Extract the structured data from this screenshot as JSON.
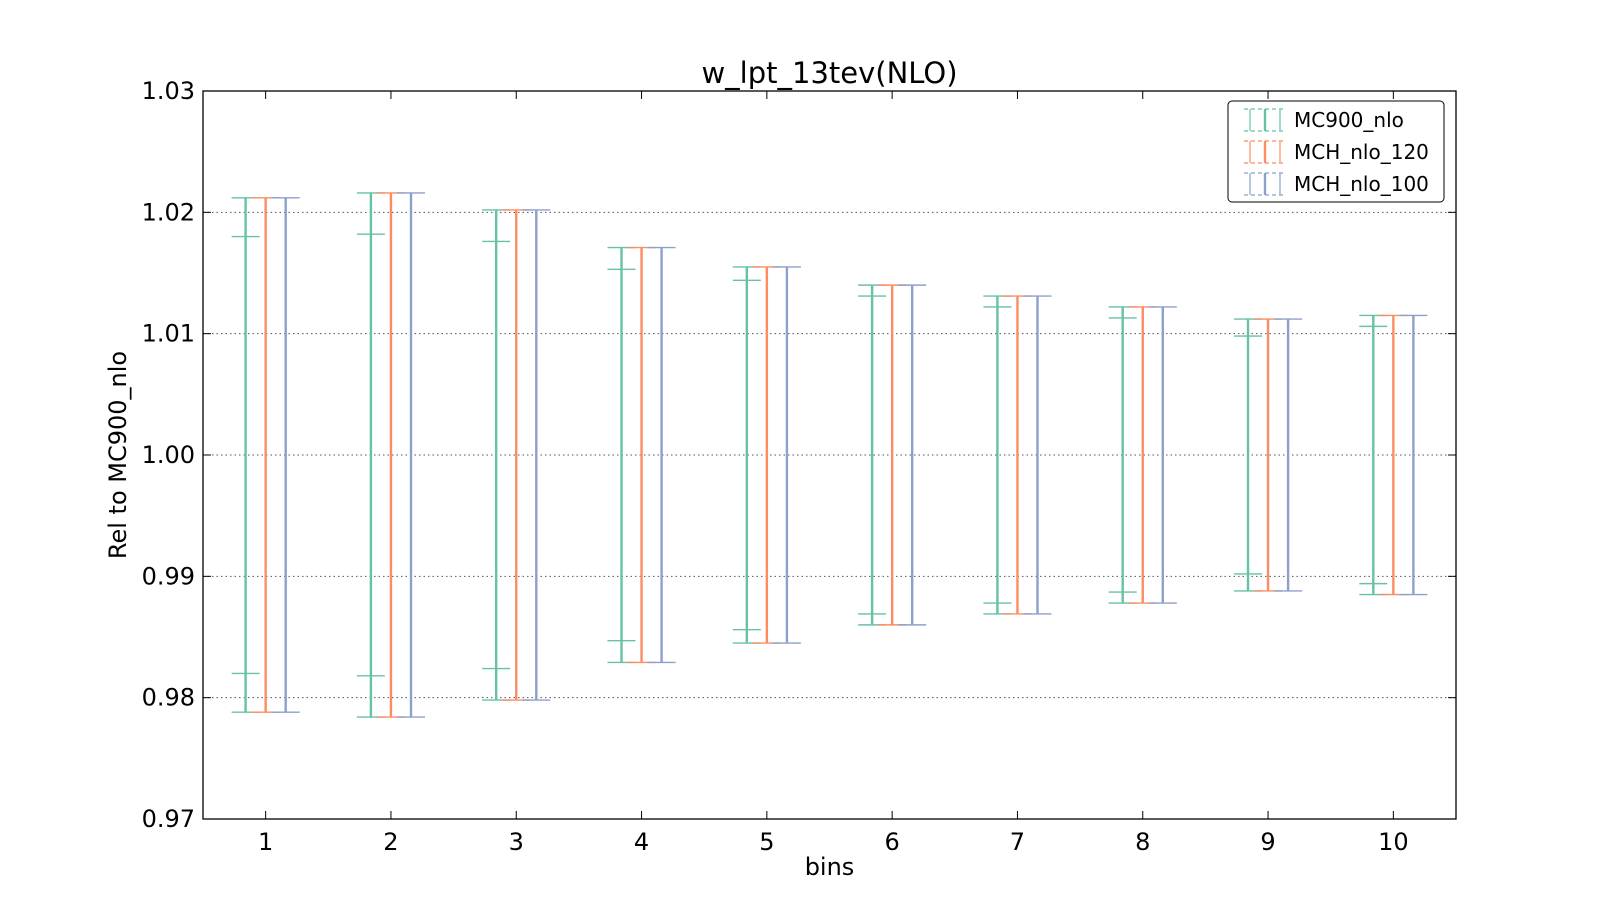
{
  "chart_data": {
    "type": "errorbar",
    "title": "w_lpt_13tev(NLO)",
    "xlabel": "bins",
    "ylabel": "Rel to MC900_nlo",
    "ylim": [
      0.97,
      1.03
    ],
    "xlim": [
      0.5,
      10.5
    ],
    "yticks": [
      "0.97",
      "0.98",
      "0.99",
      "1.00",
      "1.01",
      "1.02",
      "1.03"
    ],
    "xticks": [
      "1",
      "2",
      "3",
      "4",
      "5",
      "6",
      "7",
      "8",
      "9",
      "10"
    ],
    "grid": "horizontal dotted",
    "legend_position": "top-right",
    "series": [
      {
        "name": "MC900_nlo",
        "color": "#66c2a5",
        "x": [
          1,
          2,
          3,
          4,
          5,
          6,
          7,
          8,
          9,
          10
        ],
        "lower": [
          0.9788,
          0.9784,
          0.9798,
          0.9829,
          0.9845,
          0.986,
          0.9869,
          0.9878,
          0.9888,
          0.9885
        ],
        "upper": [
          1.0212,
          1.0216,
          1.0202,
          1.0171,
          1.0155,
          1.014,
          1.0131,
          1.0122,
          1.0112,
          1.0115
        ],
        "inner_lower": [
          0.982,
          0.9818,
          0.9824,
          0.9847,
          0.9856,
          0.9869,
          0.9878,
          0.9887,
          0.9902,
          0.9894
        ],
        "inner_upper": [
          1.018,
          1.0182,
          1.0176,
          1.0153,
          1.0144,
          1.0131,
          1.0122,
          1.0113,
          1.0098,
          1.0106
        ]
      },
      {
        "name": "MCH_nlo_120",
        "color": "#fc8d62",
        "x": [
          1,
          2,
          3,
          4,
          5,
          6,
          7,
          8,
          9,
          10
        ],
        "lower": [
          0.9788,
          0.9784,
          0.9798,
          0.9829,
          0.9845,
          0.986,
          0.9869,
          0.9878,
          0.9888,
          0.9885
        ],
        "upper": [
          1.0212,
          1.0216,
          1.0202,
          1.0171,
          1.0155,
          1.014,
          1.0131,
          1.0122,
          1.0112,
          1.0115
        ]
      },
      {
        "name": "MCH_nlo_100",
        "color": "#8da0cb",
        "x": [
          1,
          2,
          3,
          4,
          5,
          6,
          7,
          8,
          9,
          10
        ],
        "lower": [
          0.9788,
          0.9784,
          0.9798,
          0.9829,
          0.9845,
          0.986,
          0.9869,
          0.9878,
          0.9888,
          0.9885
        ],
        "upper": [
          1.0212,
          1.0216,
          1.0202,
          1.0171,
          1.0155,
          1.014,
          1.0131,
          1.0122,
          1.0112,
          1.0115
        ]
      }
    ]
  }
}
